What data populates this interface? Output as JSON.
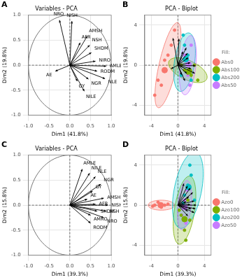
{
  "chart_data": [
    {
      "type": "vector",
      "panel_label": "A",
      "title": "Variables - PCA",
      "x_label": "Dim1 (41.8%)",
      "y_label": "Dim2 (19.8%)",
      "xlim": [
        -1,
        1
      ],
      "ylim": [
        -1,
        1
      ],
      "xticks": [
        {
          "value": -1,
          "label": "-1.0"
        },
        {
          "value": -0.5,
          "label": "-0.5"
        },
        {
          "value": 0,
          "label": "0.0"
        },
        {
          "value": 0.5,
          "label": "0.5"
        },
        {
          "value": 1,
          "label": "1.0"
        }
      ],
      "yticks": [
        {
          "value": -1,
          "label": "-1.0"
        },
        {
          "value": -0.5,
          "label": "-0.5"
        },
        {
          "value": 0,
          "label": "0.0"
        },
        {
          "value": 0.5,
          "label": "0.5"
        },
        {
          "value": 1,
          "label": "1.0"
        }
      ],
      "grid": true,
      "color": "#000000",
      "vectors": [
        {
          "name": "NRO",
          "x": -0.25,
          "y": 0.9
        },
        {
          "name": "NISH",
          "x": 0.05,
          "y": 0.88
        },
        {
          "name": "AMSH",
          "x": 0.42,
          "y": 0.58
        },
        {
          "name": "AFR",
          "x": 0.25,
          "y": 0.45
        },
        {
          "name": "NSH",
          "x": 0.48,
          "y": 0.4
        },
        {
          "name": "SHDM",
          "x": 0.52,
          "y": 0.25
        },
        {
          "name": "NIRO",
          "x": 0.62,
          "y": 0.08
        },
        {
          "name": "AMLE",
          "x": 0.88,
          "y": -0.02
        },
        {
          "name": "RODM",
          "x": 0.66,
          "y": -0.12
        },
        {
          "name": "NLE",
          "x": 0.85,
          "y": -0.27
        },
        {
          "name": "NGR",
          "x": 0.45,
          "y": -0.28
        },
        {
          "name": "GY",
          "x": 0.18,
          "y": -0.32
        },
        {
          "name": "NILE",
          "x": 0.35,
          "y": -0.52
        },
        {
          "name": "AE",
          "x": -0.35,
          "y": -0.12
        }
      ]
    },
    {
      "type": "biplot",
      "panel_label": "B",
      "title": "PCA - Biplot",
      "x_label": "Dim1 (41.8%)",
      "y_label": "Dim2 (19.8%)",
      "xlim": [
        -5,
        5
      ],
      "ylim": [
        -5,
        5
      ],
      "xticks": [
        -4,
        0,
        4
      ],
      "yticks": [
        -4,
        0,
        4
      ],
      "grid": true,
      "legend": "right",
      "legend_title": "Fill:",
      "color": "#000000",
      "series": [
        {
          "name": "Abs0",
          "color": "#F8766D",
          "x": [
            -3,
            -2.5,
            -2,
            -1,
            -0.5,
            -3.5,
            -1.5
          ],
          "y": [
            -1.5,
            -2,
            0.5,
            2,
            3.5,
            -3,
            1
          ],
          "mean": [
            -2,
            -0.5
          ],
          "ellipse": {
            "cx": -1.5,
            "cy": 0,
            "rx": 4.5,
            "ry": 1.3,
            "angle": 70
          }
        },
        {
          "name": "Abs100",
          "color": "#7CAE00",
          "x": [
            1,
            2,
            0.5,
            3,
            2.5,
            1.5
          ],
          "y": [
            -0.5,
            -1,
            0,
            -1.5,
            0,
            -0.8
          ],
          "mean": [
            1.7,
            -0.6
          ],
          "ellipse": {
            "cx": 1.5,
            "cy": -0.5,
            "rx": 3,
            "ry": 1,
            "angle": -15
          }
        },
        {
          "name": "Abs200",
          "color": "#00BFC4",
          "x": [
            1,
            0.5,
            1.5,
            2,
            1,
            0.8
          ],
          "y": [
            2,
            -1,
            1,
            -1.5,
            0.5,
            3
          ],
          "mean": [
            1.2,
            0.6
          ],
          "ellipse": {
            "cx": 1,
            "cy": 0.3,
            "rx": 3,
            "ry": 1.5,
            "angle": 75
          }
        },
        {
          "name": "Abs50",
          "color": "#C77CFF",
          "x": [
            2,
            1.5,
            1,
            2.5,
            1.8,
            1.2
          ],
          "y": [
            2,
            -1,
            1,
            0,
            -2,
            0.5
          ],
          "mean": [
            1.6,
            0.1
          ],
          "ellipse": {
            "cx": 1.5,
            "cy": 0,
            "rx": 3,
            "ry": 1.2,
            "angle": 80
          }
        }
      ],
      "vectors": [
        [
          -0.75,
          2.7
        ],
        [
          0.15,
          2.64
        ],
        [
          1.26,
          1.74
        ],
        [
          0.75,
          1.35
        ],
        [
          1.44,
          1.2
        ],
        [
          1.56,
          0.75
        ],
        [
          1.86,
          0.24
        ],
        [
          2.64,
          -0.06
        ],
        [
          1.98,
          -0.36
        ],
        [
          2.55,
          -0.81
        ],
        [
          1.35,
          -0.84
        ],
        [
          0.54,
          -0.96
        ],
        [
          1.05,
          -1.56
        ],
        [
          -1.05,
          -0.36
        ]
      ]
    },
    {
      "type": "vector",
      "panel_label": "C",
      "title": "Variables - PCA",
      "x_label": "Dim1 (39.3%)",
      "y_label": "Dim2 (15.8%)",
      "xlim": [
        -1,
        1
      ],
      "ylim": [
        -1,
        1
      ],
      "xticks": [
        {
          "value": -1,
          "label": "-1.0"
        },
        {
          "value": -0.5,
          "label": "-0.5"
        },
        {
          "value": 0,
          "label": "0.0"
        },
        {
          "value": 0.5,
          "label": "0.5"
        },
        {
          "value": 1,
          "label": "1.0"
        }
      ],
      "yticks": [
        {
          "value": -1,
          "label": "-1.0"
        },
        {
          "value": -0.5,
          "label": "-0.5"
        },
        {
          "value": 0,
          "label": "0.0"
        },
        {
          "value": 0.5,
          "label": "0.5"
        },
        {
          "value": 1,
          "label": "1.0"
        }
      ],
      "grid": true,
      "color": "#000000",
      "vectors": [
        {
          "name": "AMLE",
          "x": 0.3,
          "y": 0.72
        },
        {
          "name": "NILE",
          "x": 0.48,
          "y": 0.64
        },
        {
          "name": "NLE",
          "x": 0.62,
          "y": 0.57
        },
        {
          "name": "NGR",
          "x": 0.75,
          "y": 0.42
        },
        {
          "name": "GY",
          "x": 0.55,
          "y": 0.28
        },
        {
          "name": "AE",
          "x": 0.42,
          "y": 0.12
        },
        {
          "name": "AMSH",
          "x": 0.82,
          "y": 0.14
        },
        {
          "name": "AFR",
          "x": 0.62,
          "y": 0.02
        },
        {
          "name": "NISH",
          "x": 0.92,
          "y": 0.0
        },
        {
          "name": "NSH",
          "x": 0.88,
          "y": -0.12
        },
        {
          "name": "SHDM",
          "x": 0.66,
          "y": -0.12
        },
        {
          "name": "AMRO",
          "x": 0.5,
          "y": -0.2
        },
        {
          "name": "NRO",
          "x": 0.82,
          "y": -0.25
        },
        {
          "name": "RODM",
          "x": 0.5,
          "y": -0.36
        }
      ]
    },
    {
      "type": "biplot",
      "panel_label": "D",
      "title": "PCA - Biplot",
      "x_label": "Dim1 (39.3%)",
      "y_label": "Dim2 (15.8%)",
      "xlim": [
        -5,
        5
      ],
      "ylim": [
        -5,
        5
      ],
      "xticks": [
        -4,
        0,
        4
      ],
      "yticks": [
        -4,
        0,
        4
      ],
      "grid": true,
      "legend": "right",
      "legend_title": "Fill:",
      "color": "#000000",
      "series": [
        {
          "name": "Azo0",
          "color": "#F8766D",
          "x": [
            -3.5,
            -2.5,
            -1.5,
            -3,
            -2,
            -3.8
          ],
          "y": [
            0,
            -0.2,
            0.1,
            0.3,
            0,
            -0.1
          ],
          "mean": [
            -2.6,
            0
          ],
          "ellipse": {
            "cx": -2.5,
            "cy": 0,
            "rx": 2,
            "ry": 0.5,
            "angle": 0
          }
        },
        {
          "name": "Azo100",
          "color": "#7CAE00",
          "x": [
            0.5,
            1,
            1.5,
            0.2,
            1.8,
            1.2
          ],
          "y": [
            -1,
            -2.5,
            0.5,
            -0.5,
            -1.5,
            -3.5
          ],
          "mean": [
            1,
            -1.4
          ],
          "ellipse": {
            "cx": 1,
            "cy": -0.5,
            "rx": 3.5,
            "ry": 1.5,
            "angle": 75
          }
        },
        {
          "name": "Azo200",
          "color": "#00BFC4",
          "x": [
            1,
            2,
            1.5,
            2.5,
            0.8,
            1.8
          ],
          "y": [
            1,
            3,
            2,
            0.5,
            0.2,
            4
          ],
          "mean": [
            1.6,
            1.8
          ],
          "ellipse": {
            "cx": 1.5,
            "cy": 1.5,
            "rx": 4,
            "ry": 2,
            "angle": 70
          }
        },
        {
          "name": "Azo50",
          "color": "#C77CFF",
          "x": [
            1,
            0.6,
            1.4,
            0.8,
            1.2
          ],
          "y": [
            0.5,
            -1,
            1.5,
            0,
            -1.8
          ],
          "mean": [
            1,
            -0.2
          ],
          "ellipse": {
            "cx": 1,
            "cy": 0,
            "rx": 2.5,
            "ry": 1,
            "angle": 80
          }
        }
      ],
      "vectors": [
        [
          0.9,
          2.16
        ],
        [
          1.44,
          1.92
        ],
        [
          1.86,
          1.71
        ],
        [
          2.25,
          1.26
        ],
        [
          1.65,
          0.84
        ],
        [
          1.26,
          0.36
        ],
        [
          2.46,
          0.42
        ],
        [
          1.86,
          0.06
        ],
        [
          2.76,
          0.0
        ],
        [
          2.64,
          -0.36
        ],
        [
          1.98,
          -0.36
        ],
        [
          1.5,
          -0.6
        ],
        [
          2.46,
          -0.75
        ],
        [
          1.5,
          -1.08
        ]
      ]
    }
  ]
}
